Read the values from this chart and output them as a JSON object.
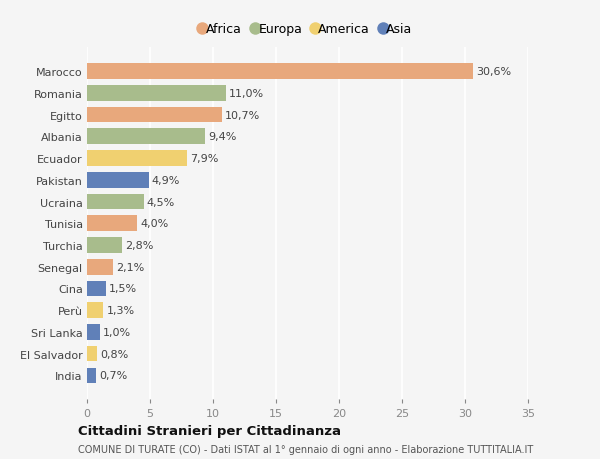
{
  "countries": [
    "Marocco",
    "Romania",
    "Egitto",
    "Albania",
    "Ecuador",
    "Pakistan",
    "Ucraina",
    "Tunisia",
    "Turchia",
    "Senegal",
    "Cina",
    "Perù",
    "Sri Lanka",
    "El Salvador",
    "India"
  ],
  "values": [
    30.6,
    11.0,
    10.7,
    9.4,
    7.9,
    4.9,
    4.5,
    4.0,
    2.8,
    2.1,
    1.5,
    1.3,
    1.0,
    0.8,
    0.7
  ],
  "labels": [
    "30,6%",
    "11,0%",
    "10,7%",
    "9,4%",
    "7,9%",
    "4,9%",
    "4,5%",
    "4,0%",
    "2,8%",
    "2,1%",
    "1,5%",
    "1,3%",
    "1,0%",
    "0,8%",
    "0,7%"
  ],
  "continents": [
    "Africa",
    "Europa",
    "Africa",
    "Europa",
    "America",
    "Asia",
    "Europa",
    "Africa",
    "Europa",
    "Africa",
    "Asia",
    "America",
    "Asia",
    "America",
    "Asia"
  ],
  "colors": {
    "Africa": "#E8A87C",
    "Europa": "#A8BC8C",
    "America": "#F0D070",
    "Asia": "#6080B8"
  },
  "legend_order": [
    "Africa",
    "Europa",
    "America",
    "Asia"
  ],
  "xlim": [
    0,
    35
  ],
  "xticks": [
    0,
    5,
    10,
    15,
    20,
    25,
    30,
    35
  ],
  "title1": "Cittadini Stranieri per Cittadinanza",
  "title2": "COMUNE DI TURATE (CO) - Dati ISTAT al 1° gennaio di ogni anno - Elaborazione TUTTITALIA.IT",
  "background_color": "#f5f5f5",
  "bar_height": 0.72,
  "grid_color": "#ffffff",
  "label_fontsize": 8,
  "tick_fontsize": 8,
  "ytick_fontsize": 8
}
